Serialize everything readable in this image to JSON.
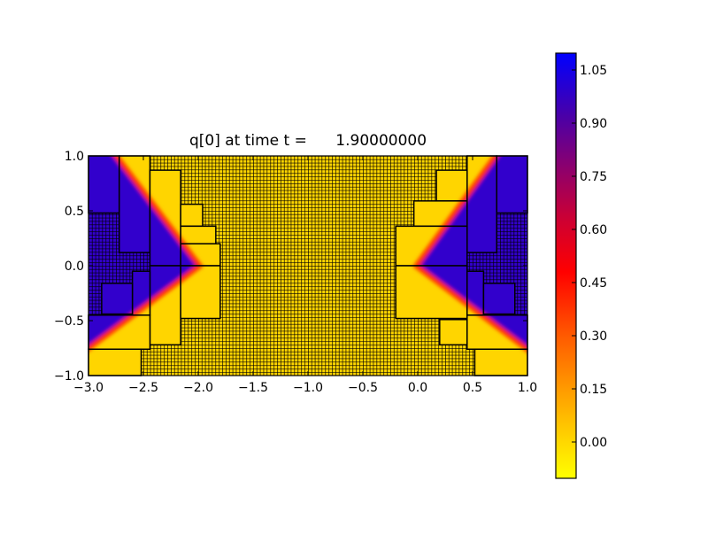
{
  "chart_data": {
    "type": "heatmap",
    "title": "q[0] at time t =      1.90000000",
    "xlabel": "",
    "ylabel": "",
    "xlim": [
      -3.0,
      1.0
    ],
    "ylim": [
      -1.0,
      1.0
    ],
    "xticks": [
      -3.0,
      -2.5,
      -2.0,
      -1.5,
      -1.0,
      -0.5,
      0.0,
      0.5,
      1.0
    ],
    "xtick_labels": [
      "−3.0",
      "−2.5",
      "−2.0",
      "−1.5",
      "−1.0",
      "−0.5",
      "0.0",
      "0.5",
      "1.0"
    ],
    "yticks": [
      -1.0,
      -0.5,
      0.0,
      0.5,
      1.0
    ],
    "ytick_labels": [
      "−1.0",
      "−0.5",
      "0.0",
      "0.5",
      "1.0"
    ],
    "field": {
      "low_value": 0.05,
      "high_value": 1.0,
      "low_color": "#ffd500",
      "high_color": "#3200cc",
      "front_color": "#ff1a00",
      "wedges": [
        {
          "vertex": [
            -2.0,
            0.0
          ],
          "upper_end": [
            -2.76,
            1.0
          ],
          "lower_end": [
            -3.0,
            -0.74
          ],
          "side": "left"
        },
        {
          "vertex": [
            0.0,
            0.0
          ],
          "upper_end": [
            0.72,
            1.0
          ],
          "lower_end": [
            1.0,
            -0.75
          ],
          "side": "right"
        }
      ]
    },
    "mesh_spacing": 0.03125,
    "patches": [
      [
        -3.0,
        -2.72,
        0.48,
        1.0
      ],
      [
        -2.72,
        -2.44,
        0.12,
        1.0
      ],
      [
        -2.44,
        -2.16,
        0.0,
        0.87
      ],
      [
        -2.44,
        -2.16,
        -0.72,
        0.0
      ],
      [
        -2.16,
        -1.96,
        0.36,
        0.56
      ],
      [
        -2.16,
        -1.84,
        0.2,
        0.36
      ],
      [
        -2.16,
        -1.8,
        0.0,
        0.2
      ],
      [
        -2.16,
        -1.8,
        -0.48,
        0.0
      ],
      [
        -2.6,
        -2.44,
        -0.45,
        -0.05
      ],
      [
        -2.88,
        -2.6,
        -0.44,
        -0.16
      ],
      [
        -3.0,
        -2.44,
        -0.76,
        -0.45
      ],
      [
        -3.0,
        -2.52,
        -1.0,
        -0.76
      ],
      [
        0.45,
        0.72,
        0.12,
        1.0
      ],
      [
        0.72,
        1.0,
        0.48,
        1.0
      ],
      [
        0.17,
        0.45,
        0.59,
        0.87
      ],
      [
        -0.035,
        0.45,
        0.36,
        0.59
      ],
      [
        -0.2,
        0.45,
        0.0,
        0.36
      ],
      [
        -0.2,
        0.45,
        -0.48,
        0.0
      ],
      [
        0.2,
        0.45,
        -0.72,
        -0.49
      ],
      [
        0.45,
        0.6,
        -0.45,
        -0.05
      ],
      [
        0.6,
        0.885,
        -0.44,
        -0.16
      ],
      [
        0.45,
        1.0,
        -0.76,
        -0.45
      ],
      [
        0.52,
        1.0,
        -1.0,
        -0.76
      ]
    ],
    "colorbar": {
      "range": [
        -0.1025,
        1.0975
      ],
      "ticks": [
        1.05,
        0.9,
        0.75,
        0.6,
        0.45,
        0.3,
        0.15,
        0.0
      ],
      "tick_labels": [
        "1.05",
        "0.90",
        "0.75",
        "0.60",
        "0.45",
        "0.30",
        "0.15",
        "0.00"
      ],
      "colormap": [
        {
          "value": -0.1025,
          "color": "#ffff00"
        },
        {
          "value": 0.0,
          "color": "#ffd800"
        },
        {
          "value": 0.15,
          "color": "#ff9a00"
        },
        {
          "value": 0.3,
          "color": "#ff5a00"
        },
        {
          "value": 0.48,
          "color": "#ff0000"
        },
        {
          "value": 0.62,
          "color": "#d00030"
        },
        {
          "value": 0.78,
          "color": "#8a0070"
        },
        {
          "value": 0.92,
          "color": "#4a00a8"
        },
        {
          "value": 1.0975,
          "color": "#0000ff"
        }
      ]
    },
    "grid": false
  }
}
